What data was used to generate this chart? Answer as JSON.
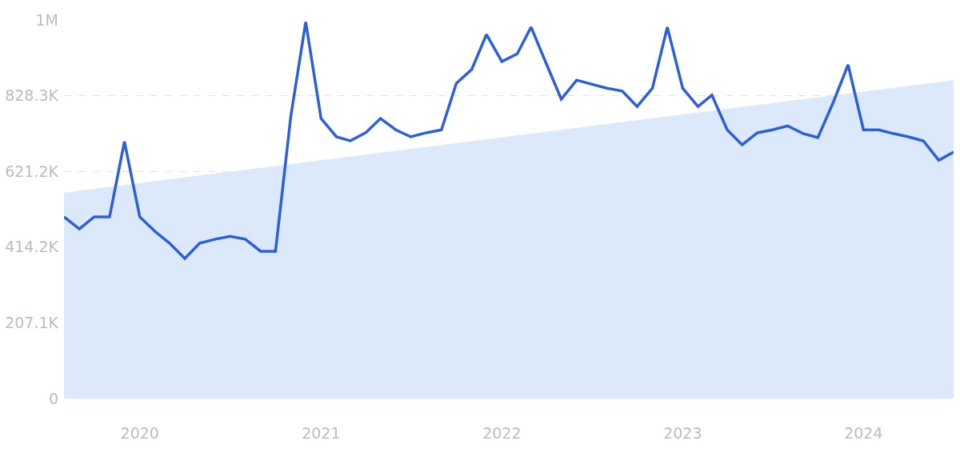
{
  "chart_data": {
    "type": "line",
    "x": [
      "2019-08",
      "2019-09",
      "2019-10",
      "2019-11",
      "2019-12",
      "2020-01",
      "2020-02",
      "2020-03",
      "2020-04",
      "2020-05",
      "2020-06",
      "2020-07",
      "2020-08",
      "2020-09",
      "2020-10",
      "2020-11",
      "2020-12",
      "2021-01",
      "2021-02",
      "2021-03",
      "2021-04",
      "2021-05",
      "2021-06",
      "2021-07",
      "2021-08",
      "2021-09",
      "2021-10",
      "2021-11",
      "2021-12",
      "2022-01",
      "2022-02",
      "2022-03",
      "2022-04",
      "2022-05",
      "2022-06",
      "2022-07",
      "2022-08",
      "2022-09",
      "2022-10",
      "2022-11",
      "2022-12",
      "2023-01",
      "2023-02",
      "2023-03",
      "2023-04",
      "2023-05",
      "2023-06",
      "2023-07",
      "2023-08",
      "2023-09",
      "2023-10",
      "2023-11",
      "2023-12",
      "2024-01",
      "2024-02",
      "2024-03",
      "2024-04",
      "2024-05",
      "2024-06",
      "2024-07"
    ],
    "series": [
      {
        "type": "area",
        "color": "#dce9fb",
        "x": [
          "2019-08",
          "2024-07"
        ],
        "values": [
          563000,
          871000
        ]
      },
      {
        "color": "#2d5fd6",
        "values": [
          497000,
          464000,
          497000,
          497000,
          703000,
          497000,
          457000,
          425000,
          383000,
          425000,
          436000,
          444000,
          436000,
          403000,
          403000,
          773000,
          1030000,
          766000,
          716000,
          705000,
          727000,
          766000,
          735000,
          716000,
          727000,
          735000,
          862000,
          900000,
          996000,
          922000,
          943000,
          1016000,
          915000,
          819000,
          871000,
          860000,
          849000,
          841000,
          799000,
          849000,
          1016000,
          849000,
          799000,
          830000,
          735000,
          694000,
          727000,
          735000,
          746000,
          725000,
          714000,
          810000,
          913000,
          735000,
          735000,
          725000,
          716000,
          705000,
          652000,
          674000
        ]
      }
    ],
    "xlim": [
      "2019-08",
      "2024-07"
    ],
    "xticks": [
      {
        "value": "2020-01",
        "label": "2020"
      },
      {
        "value": "2021-01",
        "label": "2021"
      },
      {
        "value": "2022-01",
        "label": "2022"
      },
      {
        "value": "2023-01",
        "label": "2023"
      },
      {
        "value": "2024-01",
        "label": "2024"
      }
    ],
    "ylim": [
      0,
      1035500
    ],
    "yticks": [
      {
        "value": 0,
        "label": "0"
      },
      {
        "value": 207100,
        "label": "207.1K"
      },
      {
        "value": 414200,
        "label": "414.2K"
      },
      {
        "value": 621200,
        "label": "621.2K"
      },
      {
        "value": 828300,
        "label": "828.3K"
      },
      {
        "value": 1035500,
        "label": "1M"
      }
    ],
    "grid": "y",
    "marker": "none",
    "line_style": "solid"
  }
}
